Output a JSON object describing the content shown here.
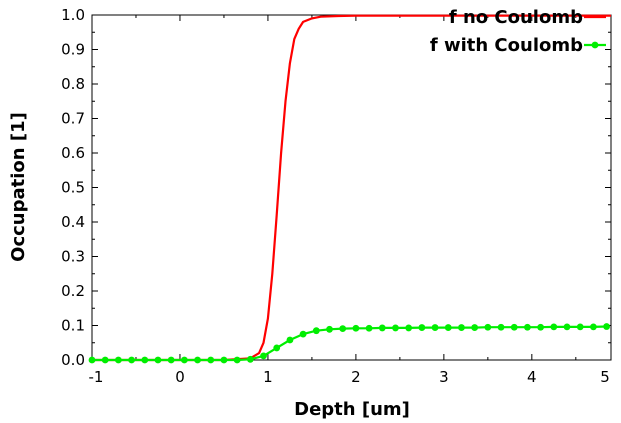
{
  "chart_data": {
    "type": "line",
    "xlabel": "Depth [um]",
    "ylabel": "Occupation [1]",
    "xlim": [
      -1,
      4.9
    ],
    "ylim": [
      0,
      1
    ],
    "xticks": [
      "-1",
      "0",
      "1",
      "2",
      "3",
      "4",
      "5"
    ],
    "yticks": [
      "0.0",
      "0.1",
      "0.2",
      "0.3",
      "0.4",
      "0.5",
      "0.6",
      "0.7",
      "0.8",
      "0.9",
      "1.0"
    ],
    "legend_position": "top-right",
    "grid": false,
    "series": [
      {
        "name": "f no Coulomb",
        "color": "#ff0000",
        "markers": false,
        "x": [
          -1,
          0.5,
          0.8,
          0.9,
          0.95,
          1.0,
          1.05,
          1.1,
          1.15,
          1.2,
          1.25,
          1.3,
          1.35,
          1.4,
          1.5,
          1.6,
          1.8,
          2.0,
          3.0,
          4.0,
          4.9
        ],
        "y": [
          0,
          0,
          0.005,
          0.02,
          0.05,
          0.12,
          0.25,
          0.42,
          0.6,
          0.75,
          0.86,
          0.93,
          0.96,
          0.98,
          0.99,
          0.995,
          0.997,
          0.998,
          0.998,
          0.998,
          0.998
        ]
      },
      {
        "name": "f with Coulomb",
        "color": "#00ee00",
        "markers": true,
        "x": [
          -1,
          -0.85,
          -0.7,
          -0.55,
          -0.4,
          -0.25,
          -0.1,
          0.05,
          0.2,
          0.35,
          0.5,
          0.65,
          0.8,
          0.95,
          1.1,
          1.25,
          1.4,
          1.55,
          1.7,
          1.85,
          2.0,
          2.15,
          2.3,
          2.45,
          2.6,
          2.75,
          2.9,
          3.05,
          3.2,
          3.35,
          3.5,
          3.65,
          3.8,
          3.95,
          4.1,
          4.25,
          4.4,
          4.55,
          4.7,
          4.85
        ],
        "y": [
          0,
          0,
          0,
          0,
          0,
          0,
          0,
          0,
          0,
          0,
          0,
          0,
          0.002,
          0.012,
          0.035,
          0.058,
          0.075,
          0.085,
          0.089,
          0.091,
          0.092,
          0.092,
          0.093,
          0.093,
          0.093,
          0.094,
          0.094,
          0.094,
          0.094,
          0.094,
          0.095,
          0.095,
          0.095,
          0.095,
          0.095,
          0.096,
          0.096,
          0.096,
          0.096,
          0.097
        ]
      }
    ]
  }
}
